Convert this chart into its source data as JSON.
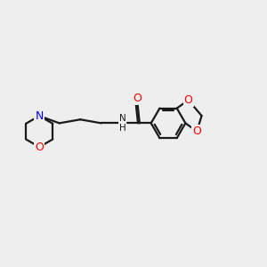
{
  "background_color": "#eeeeee",
  "bond_color": "#1a1a1a",
  "nitrogen_color": "#0000ff",
  "oxygen_color": "#ff0000",
  "amide_n_color": "#1a1a1a",
  "line_width": 1.6,
  "figsize": [
    3.0,
    3.0
  ],
  "dpi": 100,
  "xlim": [
    -3.2,
    3.2
  ],
  "ylim": [
    -2.0,
    2.0
  ]
}
